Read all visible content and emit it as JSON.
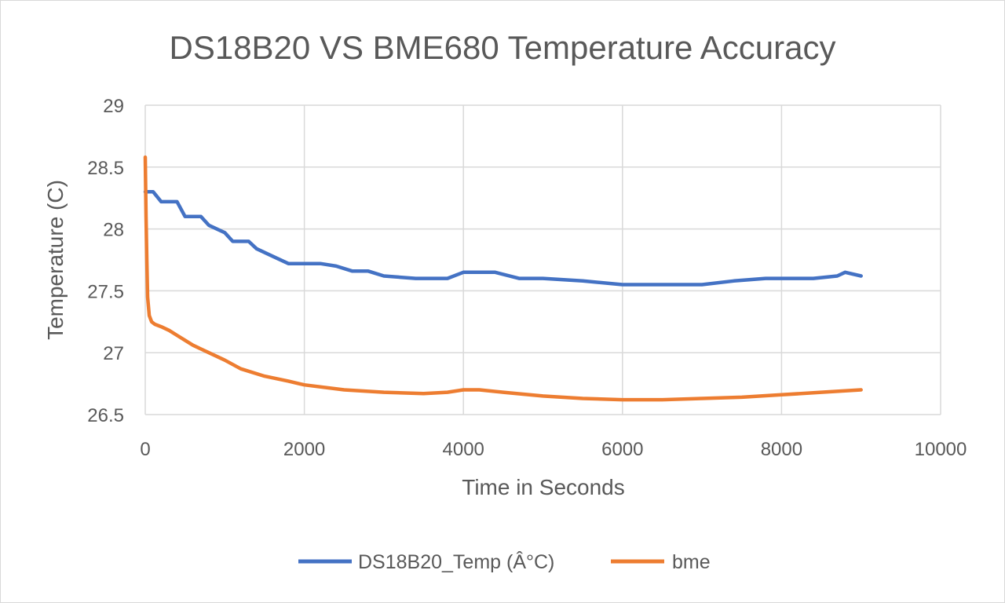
{
  "chart_data": {
    "type": "line",
    "title": "DS18B20 VS BME680 Temperature Accuracy",
    "xlabel": "Time in Seconds",
    "ylabel": "Temperature (C)",
    "xlim": [
      0,
      10000
    ],
    "ylim": [
      26.5,
      29
    ],
    "xticks": [
      "0",
      "2000",
      "4000",
      "6000",
      "8000",
      "10000"
    ],
    "yticks": [
      "26.5",
      "27",
      "27.5",
      "28",
      "28.5",
      "29"
    ],
    "grid": true,
    "legend_position": "bottom",
    "series": [
      {
        "name": "DS18B20_Temp (Â°C)",
        "color": "#4472C4",
        "x": [
          0,
          100,
          200,
          400,
          500,
          700,
          800,
          1000,
          1100,
          1300,
          1400,
          1600,
          1800,
          2000,
          2200,
          2400,
          2600,
          2800,
          3000,
          3400,
          3800,
          4000,
          4400,
          4700,
          5000,
          5500,
          6000,
          6500,
          7000,
          7400,
          7800,
          8000,
          8400,
          8700,
          8800,
          9000
        ],
        "y": [
          28.3,
          28.3,
          28.22,
          28.22,
          28.1,
          28.1,
          28.03,
          27.97,
          27.9,
          27.9,
          27.84,
          27.78,
          27.72,
          27.72,
          27.72,
          27.7,
          27.66,
          27.66,
          27.62,
          27.6,
          27.6,
          27.65,
          27.65,
          27.6,
          27.6,
          27.58,
          27.55,
          27.55,
          27.55,
          27.58,
          27.6,
          27.6,
          27.6,
          27.62,
          27.65,
          27.62
        ]
      },
      {
        "name": "bme",
        "color": "#ED7D31",
        "x": [
          0,
          10,
          20,
          30,
          50,
          80,
          120,
          200,
          300,
          400,
          500,
          600,
          800,
          1000,
          1200,
          1500,
          1800,
          2000,
          2500,
          3000,
          3500,
          3800,
          4000,
          4200,
          4500,
          5000,
          5500,
          6000,
          6500,
          7000,
          7500,
          8000,
          8500,
          9000
        ],
        "y": [
          28.58,
          28.1,
          27.75,
          27.45,
          27.3,
          27.25,
          27.23,
          27.21,
          27.18,
          27.14,
          27.1,
          27.06,
          27.0,
          26.94,
          26.87,
          26.81,
          26.77,
          26.74,
          26.7,
          26.68,
          26.67,
          26.68,
          26.7,
          26.7,
          26.68,
          26.65,
          26.63,
          26.62,
          26.62,
          26.63,
          26.64,
          26.66,
          26.68,
          26.7
        ]
      }
    ]
  }
}
